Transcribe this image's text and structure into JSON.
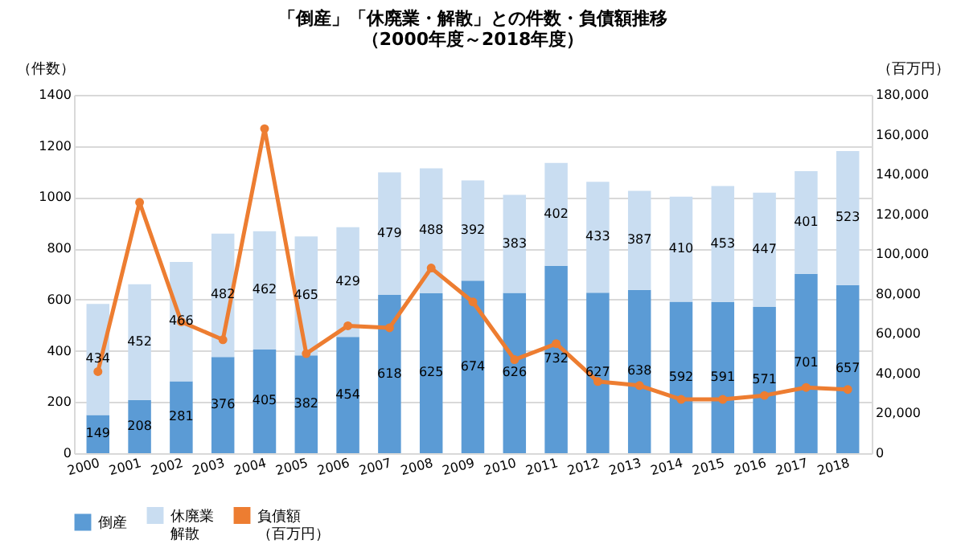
{
  "chart_data": {
    "type": "bar",
    "title": "「倒産」「休廃業・解散」との件数・負債額推移",
    "subtitle": "（2000年度～2018年度）",
    "ylabel": "（件数）",
    "y2label": "（百万円）",
    "categories": [
      "2000",
      "2001",
      "2002",
      "2003",
      "2004",
      "2005",
      "2006",
      "2007",
      "2008",
      "2009",
      "2010",
      "2011",
      "2012",
      "2013",
      "2014",
      "2015",
      "2016",
      "2017",
      "2018"
    ],
    "stacked": true,
    "series": [
      {
        "name": "倒産",
        "color": "#5b9bd5",
        "data_labels": true,
        "values": [
          149,
          208,
          281,
          376,
          405,
          382,
          454,
          618,
          625,
          674,
          626,
          732,
          627,
          638,
          592,
          591,
          571,
          701,
          657
        ]
      },
      {
        "name": "休廃業解散",
        "color": "#c9ddf1",
        "data_labels": true,
        "values": [
          434,
          452,
          466,
          482,
          462,
          465,
          429,
          479,
          488,
          392,
          383,
          402,
          433,
          387,
          410,
          453,
          447,
          401,
          523
        ]
      },
      {
        "name": "負債額（百万円）",
        "type": "line",
        "axis": "y2",
        "color": "#ed7d31",
        "marker": "circle",
        "values": [
          41000,
          126000,
          66000,
          57000,
          163000,
          50000,
          64000,
          63000,
          93000,
          76000,
          47000,
          55000,
          36000,
          34000,
          27000,
          27000,
          29000,
          33000,
          32000
        ]
      }
    ],
    "ylim": [
      0,
      1400
    ],
    "yticks": [
      0,
      200,
      400,
      600,
      800,
      1000,
      1200,
      1400
    ],
    "y2lim": [
      0,
      180000
    ],
    "y2ticks": [
      0,
      {
        "value": 20000,
        "label": "20,000"
      },
      {
        "value": 40000,
        "label": "40,000"
      },
      {
        "value": 60000,
        "label": "60,000"
      },
      {
        "value": 80000,
        "label": "80,000"
      },
      {
        "value": 100000,
        "label": "100,000"
      },
      {
        "value": 120000,
        "label": "120,000"
      },
      {
        "value": 140000,
        "label": "140,000"
      },
      {
        "value": 160000,
        "label": "160,000"
      },
      {
        "value": 180000,
        "label": "180,000"
      }
    ],
    "grid": "y",
    "legend": "bottom"
  }
}
